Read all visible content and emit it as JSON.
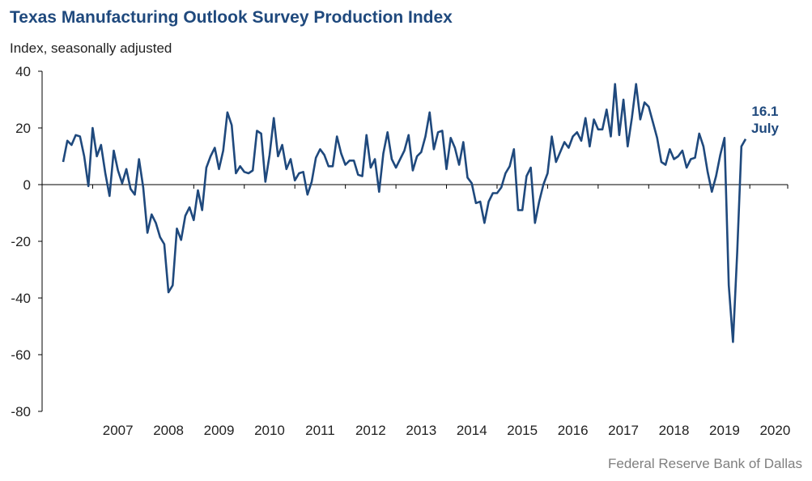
{
  "chart_data": {
    "type": "line",
    "title": "Texas Manufacturing Outlook Survey Production Index",
    "subtitle": "Index, seasonally adjusted",
    "source": "Federal Reserve Bank of Dallas",
    "ylim": [
      -80,
      40
    ],
    "yticks": [
      40,
      20,
      0,
      -20,
      -40,
      -60,
      -80
    ],
    "xlim": [
      2006.0,
      2020.75
    ],
    "xticks": [
      "2007",
      "2008",
      "2009",
      "2010",
      "2011",
      "2012",
      "2013",
      "2014",
      "2015",
      "2016",
      "2017",
      "2018",
      "2019",
      "2020"
    ],
    "grid": false,
    "line_color": "#1f497d",
    "annotation": {
      "value": "16.1",
      "label": "July"
    },
    "series": [
      {
        "start": "2006-06",
        "values": [
          8,
          15.5,
          14,
          17.5,
          17,
          10,
          -0.5,
          20,
          10,
          14,
          4,
          -4,
          12,
          5,
          0.5,
          5.5,
          -1.5,
          -3.5,
          9,
          -1,
          -17,
          -10.5,
          -13.5,
          -18.5,
          -21,
          -38,
          -35.5,
          -15.5,
          -19.5,
          -11,
          -8,
          -12.5,
          -2,
          -9,
          6,
          10,
          13,
          5.5,
          12,
          25.5,
          21,
          4,
          6.5,
          4.5,
          4,
          5,
          19,
          18,
          1,
          10.5,
          23.5,
          10,
          14,
          5.5,
          9,
          1.5,
          4,
          4.5,
          -3.5,
          1,
          9.5,
          12.5,
          10.5,
          6.5,
          6.5,
          17,
          11,
          7,
          8.5,
          8.5,
          3.5,
          3,
          17.5,
          6,
          9,
          -2.5,
          11,
          18.5,
          9,
          6,
          9,
          12,
          17.5,
          5,
          10,
          11.5,
          17,
          25.5,
          12.5,
          18.5,
          19,
          5.5,
          16.5,
          13,
          7,
          15,
          2.5,
          0.5,
          -6.5,
          -6,
          -13.5,
          -6,
          -3,
          -3,
          -1,
          4,
          6.5,
          12.5,
          -9,
          -9,
          3,
          6,
          -13.5,
          -6,
          0,
          4,
          17,
          8,
          11.5,
          15,
          13,
          17,
          18.5,
          15.5,
          23.5,
          13.5,
          23,
          19.5,
          19.5,
          26.5,
          17,
          35.5,
          17.5,
          30,
          13.5,
          23.5,
          35.5,
          23,
          29,
          27.5,
          22,
          16.5,
          8,
          7,
          12.5,
          9,
          10,
          12,
          6,
          9,
          9.5,
          18,
          13.5,
          4.5,
          -2.5,
          3,
          10.5,
          16.5,
          -35.5,
          -55.5,
          -24,
          13.5,
          16.1
        ]
      }
    ]
  }
}
